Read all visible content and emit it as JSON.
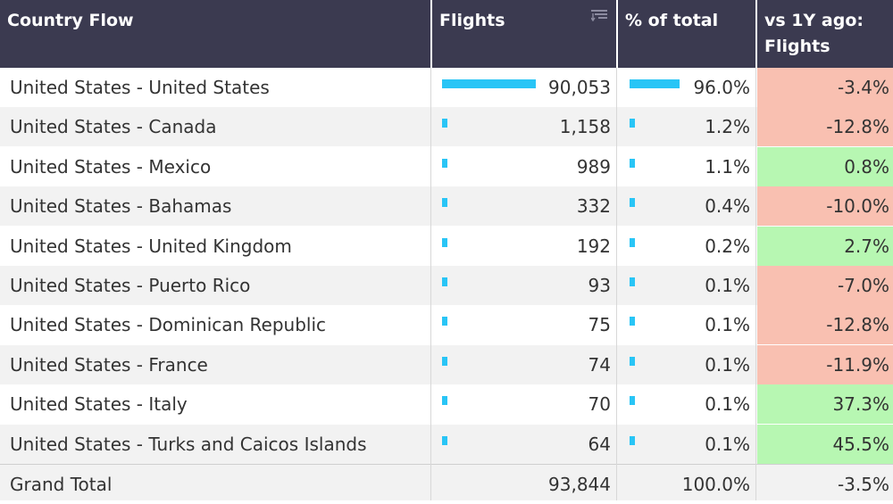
{
  "headers": {
    "country": "Country Flow",
    "flights": "Flights",
    "pct": "% of total",
    "yoy": "vs 1Y ago: Flights"
  },
  "colors": {
    "header_bg": "#3b3a50",
    "bar": "#29c5f6",
    "negative": "#f9c0b1",
    "positive": "#b7f7b2"
  },
  "rows": [
    {
      "country": "United States - United States",
      "flights": "90,053",
      "pct": "96.0%",
      "yoy": "-3.4%",
      "flights_share": 0.96,
      "yoy_sign": "negative"
    },
    {
      "country": "United States - Canada",
      "flights": "1,158",
      "pct": "1.2%",
      "yoy": "-12.8%",
      "flights_share": 0.012,
      "yoy_sign": "negative"
    },
    {
      "country": "United States - Mexico",
      "flights": "989",
      "pct": "1.1%",
      "yoy": "0.8%",
      "flights_share": 0.011,
      "yoy_sign": "positive"
    },
    {
      "country": "United States - Bahamas",
      "flights": "332",
      "pct": "0.4%",
      "yoy": "-10.0%",
      "flights_share": 0.004,
      "yoy_sign": "negative"
    },
    {
      "country": "United States - United Kingdom",
      "flights": "192",
      "pct": "0.2%",
      "yoy": "2.7%",
      "flights_share": 0.002,
      "yoy_sign": "positive"
    },
    {
      "country": "United States - Puerto Rico",
      "flights": "93",
      "pct": "0.1%",
      "yoy": "-7.0%",
      "flights_share": 0.001,
      "yoy_sign": "negative"
    },
    {
      "country": "United States - Dominican Republic",
      "flights": "75",
      "pct": "0.1%",
      "yoy": "-12.8%",
      "flights_share": 0.001,
      "yoy_sign": "negative"
    },
    {
      "country": "United States - France",
      "flights": "74",
      "pct": "0.1%",
      "yoy": "-11.9%",
      "flights_share": 0.001,
      "yoy_sign": "negative"
    },
    {
      "country": "United States - Italy",
      "flights": "70",
      "pct": "0.1%",
      "yoy": "37.3%",
      "flights_share": 0.001,
      "yoy_sign": "positive"
    },
    {
      "country": "United States - Turks and Caicos Islands",
      "flights": "64",
      "pct": "0.1%",
      "yoy": "45.5%",
      "flights_share": 0.001,
      "yoy_sign": "positive"
    }
  ],
  "total": {
    "label": "Grand Total",
    "flights": "93,844",
    "pct": "100.0%",
    "yoy": "-3.5%"
  }
}
